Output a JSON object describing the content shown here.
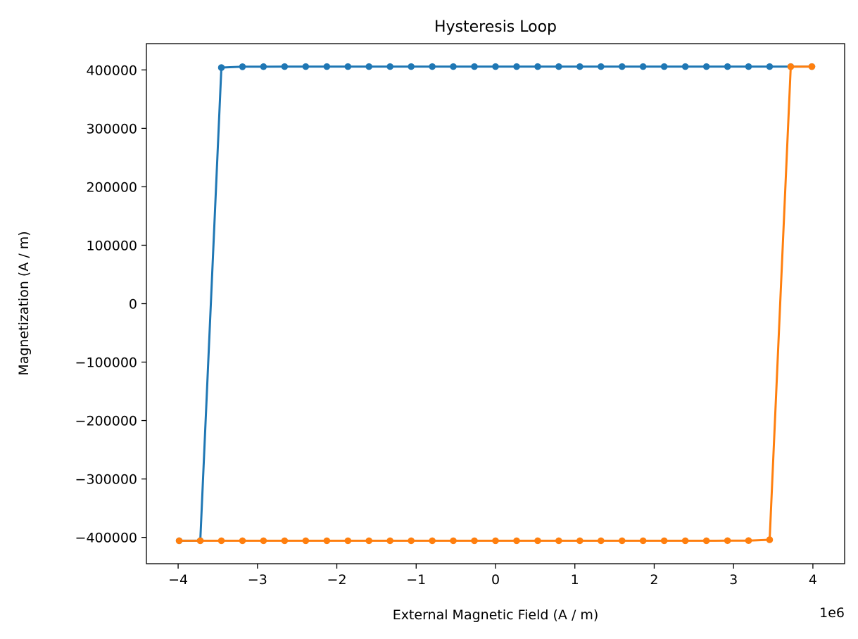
{
  "chart_data": {
    "type": "line",
    "title": "Hysteresis Loop",
    "xlabel": "External Magnetic Field (A / m)",
    "ylabel": "Magnetization (A / m)",
    "x_offset_label": "1e6",
    "xlim": [
      -4.4,
      4.4
    ],
    "ylim": [
      -445000,
      445000
    ],
    "x_ticks": [
      -4,
      -3,
      -2,
      -1,
      0,
      1,
      2,
      3,
      4
    ],
    "x_tick_labels": [
      "−4",
      "−3",
      "−2",
      "−1",
      "0",
      "1",
      "2",
      "3",
      "4"
    ],
    "y_ticks": [
      -400000,
      -300000,
      -200000,
      -100000,
      0,
      100000,
      200000,
      300000,
      400000
    ],
    "y_tick_labels": [
      "−400000",
      "−300000",
      "−200000",
      "−100000",
      "0",
      "100000",
      "200000",
      "300000",
      "400000"
    ],
    "grid": false,
    "series": [
      {
        "color": "#1f77b4",
        "points": [
          [
            3.987,
            405700
          ],
          [
            3.721,
            405700
          ],
          [
            3.455,
            405700
          ],
          [
            3.189,
            405700
          ],
          [
            2.924,
            405700
          ],
          [
            2.658,
            405700
          ],
          [
            2.392,
            405700
          ],
          [
            2.126,
            405700
          ],
          [
            1.86,
            405700
          ],
          [
            1.595,
            405700
          ],
          [
            1.329,
            405700
          ],
          [
            1.063,
            405700
          ],
          [
            0.797,
            405700
          ],
          [
            0.532,
            405700
          ],
          [
            0.266,
            405700
          ],
          [
            0.0,
            405700
          ],
          [
            -0.266,
            405700
          ],
          [
            -0.532,
            405700
          ],
          [
            -0.797,
            405700
          ],
          [
            -1.063,
            405700
          ],
          [
            -1.329,
            405700
          ],
          [
            -1.595,
            405700
          ],
          [
            -1.86,
            405700
          ],
          [
            -2.126,
            405700
          ],
          [
            -2.392,
            405700
          ],
          [
            -2.658,
            405700
          ],
          [
            -2.924,
            405600
          ],
          [
            -3.189,
            405500
          ],
          [
            -3.455,
            404000
          ],
          [
            -3.721,
            -405600
          ],
          [
            -3.987,
            -405700
          ]
        ]
      },
      {
        "color": "#ff7f0e",
        "points": [
          [
            -3.987,
            -405700
          ],
          [
            -3.721,
            -405700
          ],
          [
            -3.455,
            -405700
          ],
          [
            -3.189,
            -405700
          ],
          [
            -2.924,
            -405700
          ],
          [
            -2.658,
            -405700
          ],
          [
            -2.392,
            -405700
          ],
          [
            -2.126,
            -405700
          ],
          [
            -1.86,
            -405700
          ],
          [
            -1.595,
            -405700
          ],
          [
            -1.329,
            -405700
          ],
          [
            -1.063,
            -405700
          ],
          [
            -0.797,
            -405700
          ],
          [
            -0.532,
            -405700
          ],
          [
            -0.266,
            -405700
          ],
          [
            0.0,
            -405700
          ],
          [
            0.266,
            -405700
          ],
          [
            0.532,
            -405700
          ],
          [
            0.797,
            -405700
          ],
          [
            1.063,
            -405700
          ],
          [
            1.329,
            -405700
          ],
          [
            1.595,
            -405700
          ],
          [
            1.86,
            -405700
          ],
          [
            2.126,
            -405700
          ],
          [
            2.392,
            -405700
          ],
          [
            2.658,
            -405700
          ],
          [
            2.924,
            -405600
          ],
          [
            3.189,
            -405500
          ],
          [
            3.455,
            -404000
          ],
          [
            3.721,
            405600
          ],
          [
            3.987,
            405700
          ]
        ]
      }
    ]
  }
}
